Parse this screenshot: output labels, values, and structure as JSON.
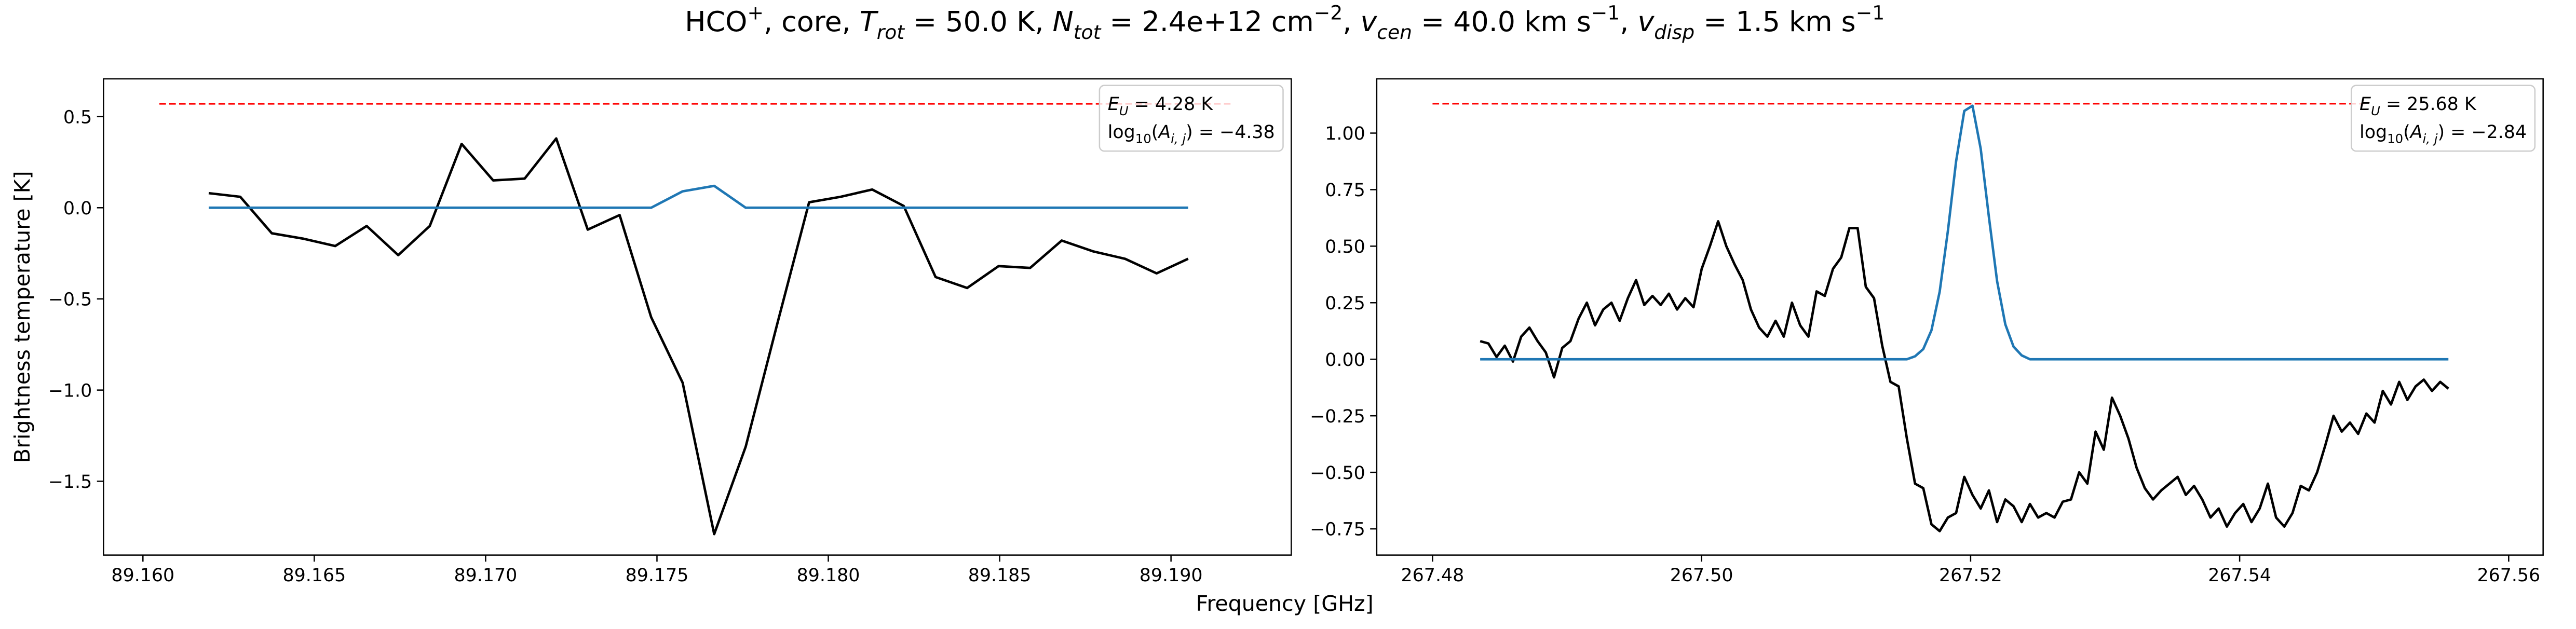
{
  "title": [
    {
      "text": "HCO"
    },
    {
      "text": "+",
      "sup": true
    },
    {
      "text": ", core, "
    },
    {
      "text": "T",
      "italic": true
    },
    {
      "text": "rot",
      "sub": true,
      "italic": true
    },
    {
      "text": " =  50.0 K, "
    },
    {
      "text": "N",
      "italic": true
    },
    {
      "text": "tot",
      "sub": true,
      "italic": true
    },
    {
      "text": " =  2.4e+12 cm"
    },
    {
      "text": "−2",
      "sup": true
    },
    {
      "text": ", "
    },
    {
      "text": "v",
      "italic": true
    },
    {
      "text": "cen",
      "sub": true,
      "italic": true
    },
    {
      "text": " =  40.0 km s"
    },
    {
      "text": "−1",
      "sup": true
    },
    {
      "text": ", "
    },
    {
      "text": "v",
      "italic": true
    },
    {
      "text": "disp",
      "sub": true,
      "italic": true
    },
    {
      "text": " =  1.5 km s"
    },
    {
      "text": "−1",
      "sup": true
    }
  ],
  "xlabel": "Frequency [GHz]",
  "ylabel": "Brightness temperature [K]",
  "chart_data": [
    {
      "type": "line",
      "xlim": [
        89.15885,
        89.19351
      ],
      "ylim": [
        -1.905,
        0.707
      ],
      "xticks": [
        {
          "value": 89.16,
          "label": "89.160"
        },
        89.165,
        {
          "value": 89.17,
          "label": "89.170"
        },
        89.175,
        {
          "value": 89.18,
          "label": "89.180"
        },
        89.185,
        {
          "value": 89.19,
          "label": "89.190"
        }
      ],
      "yticks": [
        {
          "value": 0.5,
          "label": "0.5"
        },
        {
          "value": 0,
          "label": "0.0"
        },
        {
          "value": -0.5,
          "label": "−0.5"
        },
        {
          "value": -1,
          "label": "−1.0"
        },
        {
          "value": -1.5,
          "label": "−1.5"
        }
      ],
      "annotation_loc": "upper right",
      "annotation": [
        [
          {
            "text": "E",
            "italic": true
          },
          {
            "text": "U",
            "sub": true,
            "italic": true
          },
          {
            "text": " = 4.28 K"
          }
        ],
        [
          {
            "text": "log"
          },
          {
            "text": "10",
            "sub": true
          },
          {
            "text": "("
          },
          {
            "text": "A",
            "italic": true
          },
          {
            "text": "i, j",
            "sub": true,
            "italic": true
          },
          {
            "text": ") = −4.38"
          }
        ]
      ],
      "series": [
        {
          "color": "#ff0000",
          "dashed": true,
          "x": [
            89.16048,
            89.19178
          ],
          "values": [
            0.57,
            0.57
          ]
        },
        {
          "color": "#000000",
          "x": [
            89.16192,
            89.16284,
            89.16376,
            89.16469,
            89.16561,
            89.16653,
            89.16745,
            89.16837,
            89.1693,
            89.17022,
            89.17114,
            89.17206,
            89.17298,
            89.17391,
            89.17483,
            89.17575,
            89.17667,
            89.17759,
            89.17852,
            89.17944,
            89.18036,
            89.18128,
            89.1822,
            89.18313,
            89.18405,
            89.18497,
            89.18589,
            89.18681,
            89.18774,
            89.18866,
            89.18958,
            89.1905
          ],
          "values": [
            0.08,
            0.06,
            -0.14,
            -0.17,
            -0.21,
            -0.1,
            -0.26,
            -0.1,
            0.35,
            0.15,
            0.16,
            0.38,
            -0.12,
            -0.04,
            -0.6,
            -0.96,
            -1.79,
            -1.31,
            -0.63,
            0.03,
            0.06,
            0.1,
            0.01,
            -0.38,
            -0.44,
            -0.32,
            -0.33,
            -0.18,
            -0.24,
            -0.28,
            -0.36,
            -0.28
          ]
        },
        {
          "color": "#1f77b4",
          "x": [
            89.16192,
            89.16284,
            89.16376,
            89.16469,
            89.16561,
            89.16653,
            89.16745,
            89.16837,
            89.1693,
            89.17022,
            89.17114,
            89.17206,
            89.17298,
            89.17391,
            89.17483,
            89.17575,
            89.17667,
            89.17759,
            89.17852,
            89.17944,
            89.18036,
            89.18128,
            89.1822,
            89.18313,
            89.18405,
            89.18497,
            89.18589,
            89.18681,
            89.18774,
            89.18866,
            89.18958,
            89.1905
          ],
          "values": [
            0,
            0,
            0,
            0,
            0,
            0,
            0,
            0,
            0,
            0,
            0,
            0,
            0,
            0,
            0,
            0.09,
            0.12,
            0,
            0,
            0,
            0,
            0,
            0,
            0,
            0,
            0,
            0,
            0,
            0,
            0,
            0,
            0
          ]
        }
      ]
    },
    {
      "type": "line",
      "xlim": [
        267.47585,
        267.56256
      ],
      "ylim": [
        -0.866,
        1.24
      ],
      "xticks": [
        267.48,
        {
          "value": 267.5,
          "label": "267.50"
        },
        267.52,
        267.54,
        267.56
      ],
      "yticks": [
        {
          "value": 1,
          "label": "1.00"
        },
        0.75,
        {
          "value": 0.5,
          "label": "0.50"
        },
        0.25,
        {
          "value": 0,
          "label": "0.00"
        },
        {
          "value": -0.25,
          "label": "−0.25"
        },
        {
          "value": -0.5,
          "label": "−0.50"
        },
        {
          "value": -0.75,
          "label": "−0.75"
        }
      ],
      "annotation_loc": "upper right",
      "annotation": [
        [
          {
            "text": "E",
            "italic": true
          },
          {
            "text": "U",
            "sub": true,
            "italic": true
          },
          {
            "text": " = 25.68 K"
          }
        ],
        [
          {
            "text": "log"
          },
          {
            "text": "10",
            "sub": true
          },
          {
            "text": "("
          },
          {
            "text": "A",
            "italic": true
          },
          {
            "text": "i, j",
            "sub": true,
            "italic": true
          },
          {
            "text": ") = −2.84"
          }
        ]
      ],
      "series": [
        {
          "color": "#ff0000",
          "dashed": true,
          "x": [
            267.48,
            267.54927
          ],
          "values": [
            1.13,
            1.13
          ]
        },
        {
          "color": "#000000",
          "x": [
            267.48354,
            267.48415,
            267.48476,
            267.48537,
            267.48598,
            267.48659,
            267.4872,
            267.48781,
            267.48842,
            267.48903,
            267.48964,
            267.49025,
            267.49086,
            267.49147,
            267.49208,
            267.49269,
            267.4933,
            267.49391,
            267.49452,
            267.49513,
            267.49574,
            267.49635,
            267.49696,
            267.49757,
            267.49818,
            267.49879,
            267.4994,
            267.50001,
            267.50062,
            267.50123,
            267.50184,
            267.50245,
            267.50306,
            267.50367,
            267.50428,
            267.50489,
            267.5055,
            267.50611,
            267.50672,
            267.50733,
            267.50794,
            267.50855,
            267.50916,
            267.50977,
            267.51038,
            267.51099,
            267.5116,
            267.51221,
            267.51282,
            267.51343,
            267.51404,
            267.51465,
            267.51526,
            267.51587,
            267.51648,
            267.51709,
            267.5177,
            267.51831,
            267.51892,
            267.51953,
            267.52014,
            267.52075,
            267.52136,
            267.52197,
            267.52258,
            267.52319,
            267.5238,
            267.52441,
            267.52502,
            267.52563,
            267.52624,
            267.52685,
            267.52746,
            267.52807,
            267.52868,
            267.52929,
            267.5299,
            267.53051,
            267.53112,
            267.53173,
            267.53234,
            267.53295,
            267.53356,
            267.53417,
            267.53478,
            267.53539,
            267.536,
            267.53661,
            267.53722,
            267.53783,
            267.53844,
            267.53905,
            267.53966,
            267.54027,
            267.54088,
            267.54149,
            267.5421,
            267.54271,
            267.54332,
            267.54393,
            267.54454,
            267.54515,
            267.54576,
            267.54637,
            267.54698,
            267.54759,
            267.5482,
            267.54881,
            267.54942,
            267.55003,
            267.55064,
            267.55125,
            267.55186,
            267.55247,
            267.55308,
            267.55369,
            267.5543,
            267.55491,
            267.55552
          ],
          "values": [
            0.08,
            0.07,
            0.01,
            0.06,
            -0.01,
            0.1,
            0.14,
            0.08,
            0.03,
            -0.08,
            0.05,
            0.08,
            0.18,
            0.25,
            0.15,
            0.22,
            0.25,
            0.17,
            0.27,
            0.35,
            0.24,
            0.28,
            0.24,
            0.29,
            0.22,
            0.27,
            0.23,
            0.4,
            0.5,
            0.61,
            0.5,
            0.42,
            0.35,
            0.22,
            0.14,
            0.1,
            0.17,
            0.1,
            0.25,
            0.15,
            0.1,
            0.3,
            0.28,
            0.4,
            0.45,
            0.58,
            0.58,
            0.32,
            0.27,
            0.06,
            -0.1,
            -0.12,
            -0.35,
            -0.55,
            -0.57,
            -0.73,
            -0.76,
            -0.7,
            -0.68,
            -0.52,
            -0.6,
            -0.66,
            -0.58,
            -0.72,
            -0.62,
            -0.65,
            -0.72,
            -0.64,
            -0.7,
            -0.68,
            -0.7,
            -0.63,
            -0.62,
            -0.5,
            -0.55,
            -0.32,
            -0.4,
            -0.17,
            -0.25,
            -0.35,
            -0.48,
            -0.57,
            -0.62,
            -0.58,
            -0.55,
            -0.52,
            -0.6,
            -0.56,
            -0.62,
            -0.7,
            -0.66,
            -0.74,
            -0.68,
            -0.64,
            -0.72,
            -0.66,
            -0.55,
            -0.7,
            -0.74,
            -0.68,
            -0.56,
            -0.58,
            -0.5,
            -0.38,
            -0.25,
            -0.32,
            -0.28,
            -0.33,
            -0.24,
            -0.28,
            -0.14,
            -0.2,
            -0.1,
            -0.18,
            -0.12,
            -0.09,
            -0.14,
            -0.1,
            -0.13
          ]
        },
        {
          "color": "#1f77b4",
          "x": [
            267.48354,
            267.48415,
            267.48476,
            267.48537,
            267.48598,
            267.48659,
            267.4872,
            267.48781,
            267.48842,
            267.48903,
            267.48964,
            267.49025,
            267.49086,
            267.49147,
            267.49208,
            267.49269,
            267.4933,
            267.49391,
            267.49452,
            267.49513,
            267.49574,
            267.49635,
            267.49696,
            267.49757,
            267.49818,
            267.49879,
            267.4994,
            267.50001,
            267.50062,
            267.50123,
            267.50184,
            267.50245,
            267.50306,
            267.50367,
            267.50428,
            267.50489,
            267.5055,
            267.50611,
            267.50672,
            267.50733,
            267.50794,
            267.50855,
            267.50916,
            267.50977,
            267.51038,
            267.51099,
            267.5116,
            267.51221,
            267.51282,
            267.51343,
            267.51404,
            267.51465,
            267.51526,
            267.51587,
            267.51648,
            267.51709,
            267.5177,
            267.51831,
            267.51892,
            267.51953,
            267.52014,
            267.52075,
            267.52136,
            267.52197,
            267.52258,
            267.52319,
            267.5238,
            267.52441,
            267.52502,
            267.52563,
            267.52624,
            267.52685,
            267.52746,
            267.52807,
            267.52868,
            267.52929,
            267.5299,
            267.53051,
            267.53112,
            267.53173,
            267.53234,
            267.53295,
            267.53356,
            267.53417,
            267.53478,
            267.53539,
            267.536,
            267.53661,
            267.53722,
            267.53783,
            267.53844,
            267.53905,
            267.53966,
            267.54027,
            267.54088,
            267.54149,
            267.5421,
            267.54271,
            267.54332,
            267.54393,
            267.54454,
            267.54515,
            267.54576,
            267.54637,
            267.54698,
            267.54759,
            267.5482,
            267.54881,
            267.54942,
            267.55003,
            267.55064,
            267.55125,
            267.55186,
            267.55247,
            267.55308,
            267.55369,
            267.5543,
            267.55491,
            267.55552
          ],
          "values": [
            0,
            0,
            0,
            0,
            0,
            0,
            0,
            0,
            0,
            0,
            0,
            0,
            0,
            0,
            0,
            0,
            0,
            0,
            0,
            0,
            0,
            0,
            0,
            0,
            0,
            0,
            0,
            0,
            0,
            0,
            0,
            0,
            0,
            0,
            0,
            0,
            0,
            0,
            0,
            0,
            0,
            0,
            0,
            0,
            0,
            0,
            0,
            0,
            0,
            0,
            0,
            0,
            0,
            0.013,
            0.045,
            0.128,
            0.299,
            0.567,
            0.875,
            1.098,
            1.121,
            0.931,
            0.629,
            0.345,
            0.154,
            0.056,
            0.017,
            0,
            0,
            0,
            0,
            0,
            0,
            0,
            0,
            0,
            0,
            0,
            0,
            0,
            0,
            0,
            0,
            0,
            0,
            0,
            0,
            0,
            0,
            0,
            0,
            0,
            0,
            0,
            0,
            0,
            0,
            0,
            0,
            0,
            0,
            0,
            0,
            0,
            0,
            0,
            0,
            0,
            0,
            0,
            0,
            0,
            0,
            0,
            0,
            0,
            0,
            0,
            0
          ]
        }
      ]
    }
  ]
}
